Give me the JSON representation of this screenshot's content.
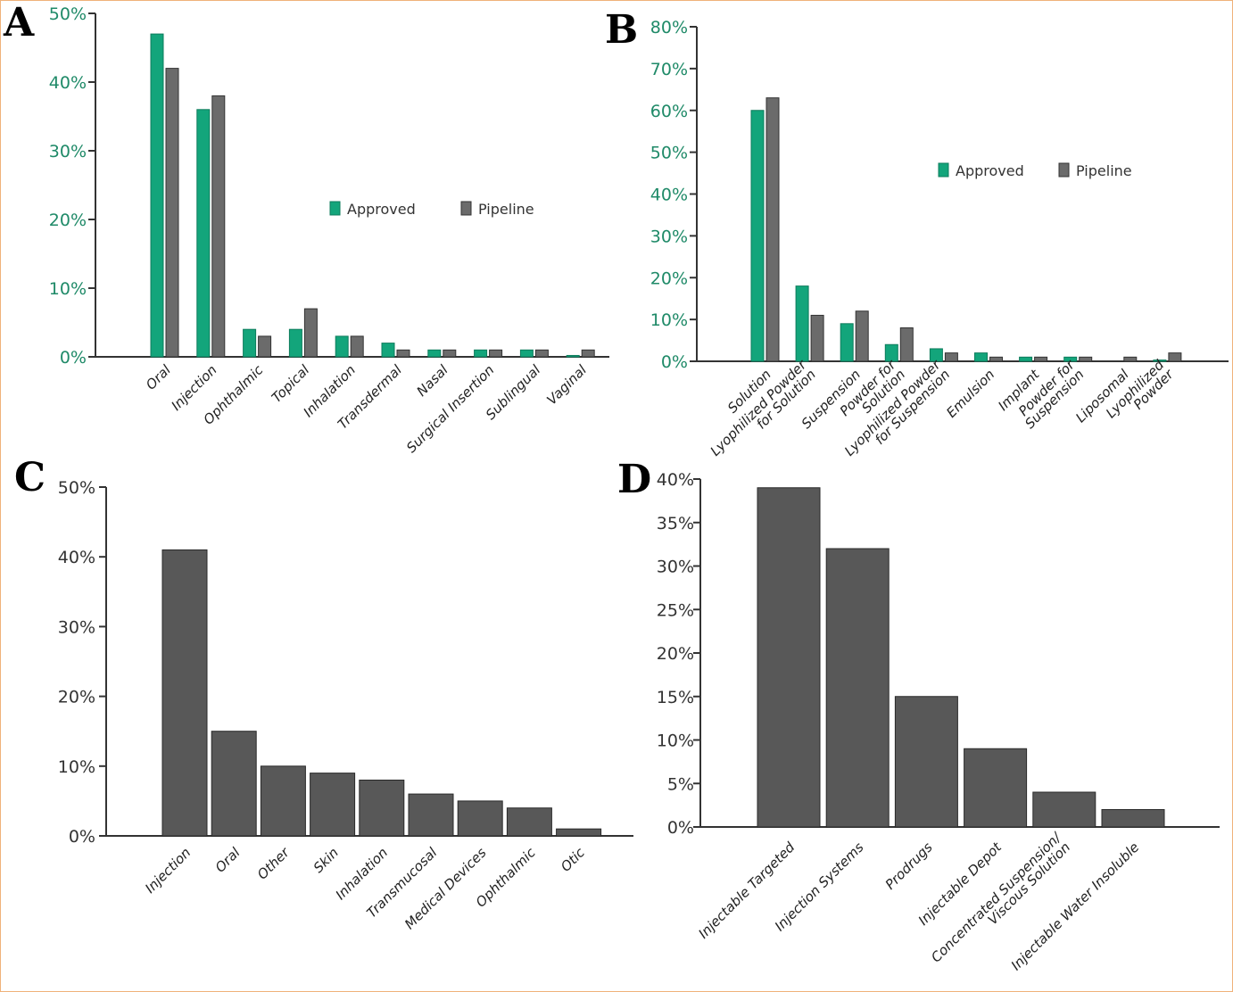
{
  "colors": {
    "approved": "#13a57b",
    "pipeline": "#6b6b6b",
    "single": "#585858",
    "green_tick": "#1f8a68"
  },
  "chart_data": [
    {
      "panel": "A",
      "type": "bar",
      "categories": [
        "Oral",
        "Injection",
        "Ophthalmic",
        "Topical",
        "Inhalation",
        "Transdermal",
        "Nasal",
        "Surgical Insertion",
        "Sublingual",
        "Vaginal"
      ],
      "series": [
        {
          "name": "Approved",
          "values": [
            47,
            36,
            4,
            4,
            3,
            2,
            1,
            1,
            1,
            0.2
          ]
        },
        {
          "name": "Pipeline",
          "values": [
            42,
            38,
            3,
            7,
            3,
            1,
            1,
            1,
            1,
            1
          ]
        }
      ],
      "yticks": [
        "0%",
        "10%",
        "20%",
        "30%",
        "40%",
        "50%"
      ],
      "ylim": [
        0,
        50
      ],
      "legend": [
        "Approved",
        "Pipeline"
      ],
      "legend_position": "center-right"
    },
    {
      "panel": "B",
      "type": "bar",
      "categories": [
        "Solution",
        "Lyophilized Powder for Solution",
        "Suspension",
        "Powder for Solution",
        "Lyophilized Powder for Suspension",
        "Emulsion",
        "Implant",
        "Powder for Suspension",
        "Liposomal",
        "Lyophilized Powder"
      ],
      "category_lines": [
        [
          "Solution"
        ],
        [
          "Lyophilized Powder",
          "for Solution"
        ],
        [
          "Suspension"
        ],
        [
          "Powder for",
          "Solution"
        ],
        [
          "Lyophilized Powder",
          "for Suspension"
        ],
        [
          "Emulsion"
        ],
        [
          "Implant"
        ],
        [
          "Powder for",
          "Suspension"
        ],
        [
          "Liposomal"
        ],
        [
          "Lyophilized",
          "Powder"
        ]
      ],
      "series": [
        {
          "name": "Approved",
          "values": [
            60,
            18,
            9,
            4,
            3,
            2,
            1,
            1,
            0,
            0.3
          ]
        },
        {
          "name": "Pipeline",
          "values": [
            63,
            11,
            12,
            8,
            2,
            1,
            1,
            1,
            1,
            2
          ]
        }
      ],
      "yticks": [
        "0%",
        "10%",
        "20%",
        "30%",
        "40%",
        "50%",
        "60%",
        "70%",
        "80%"
      ],
      "ylim": [
        0,
        80
      ],
      "legend": [
        "Approved",
        "Pipeline"
      ],
      "legend_position": "center-right"
    },
    {
      "panel": "C",
      "type": "bar",
      "categories": [
        "Injection",
        "Oral",
        "Other",
        "Skin",
        "Inhalation",
        "Transmucosal",
        "Medical Devices",
        "Ophthalmic",
        "Otic"
      ],
      "values": [
        41,
        15,
        10,
        9,
        8,
        6,
        5,
        4,
        1
      ],
      "yticks": [
        "0%",
        "10%",
        "20%",
        "30%",
        "40%",
        "50%"
      ],
      "ylim": [
        0,
        50
      ]
    },
    {
      "panel": "D",
      "type": "bar",
      "categories": [
        "Injectable Targeted",
        "Injection Systems",
        "Prodrugs",
        "Injectable Depot",
        "Concentrated Suspension/ Viscous Solution",
        "Injectable Water Insoluble"
      ],
      "category_lines": [
        [
          "Injectable Targeted"
        ],
        [
          "Injection Systems"
        ],
        [
          "Prodrugs"
        ],
        [
          "Injectable Depot"
        ],
        [
          "Concentrated Suspension/",
          "Viscous Solution"
        ],
        [
          "Injectable Water Insoluble"
        ]
      ],
      "values": [
        39,
        32,
        15,
        9,
        4,
        2
      ],
      "yticks": [
        "0%",
        "5%",
        "10%",
        "15%",
        "20%",
        "25%",
        "30%",
        "35%",
        "40%"
      ],
      "ylim": [
        0,
        40
      ]
    }
  ]
}
